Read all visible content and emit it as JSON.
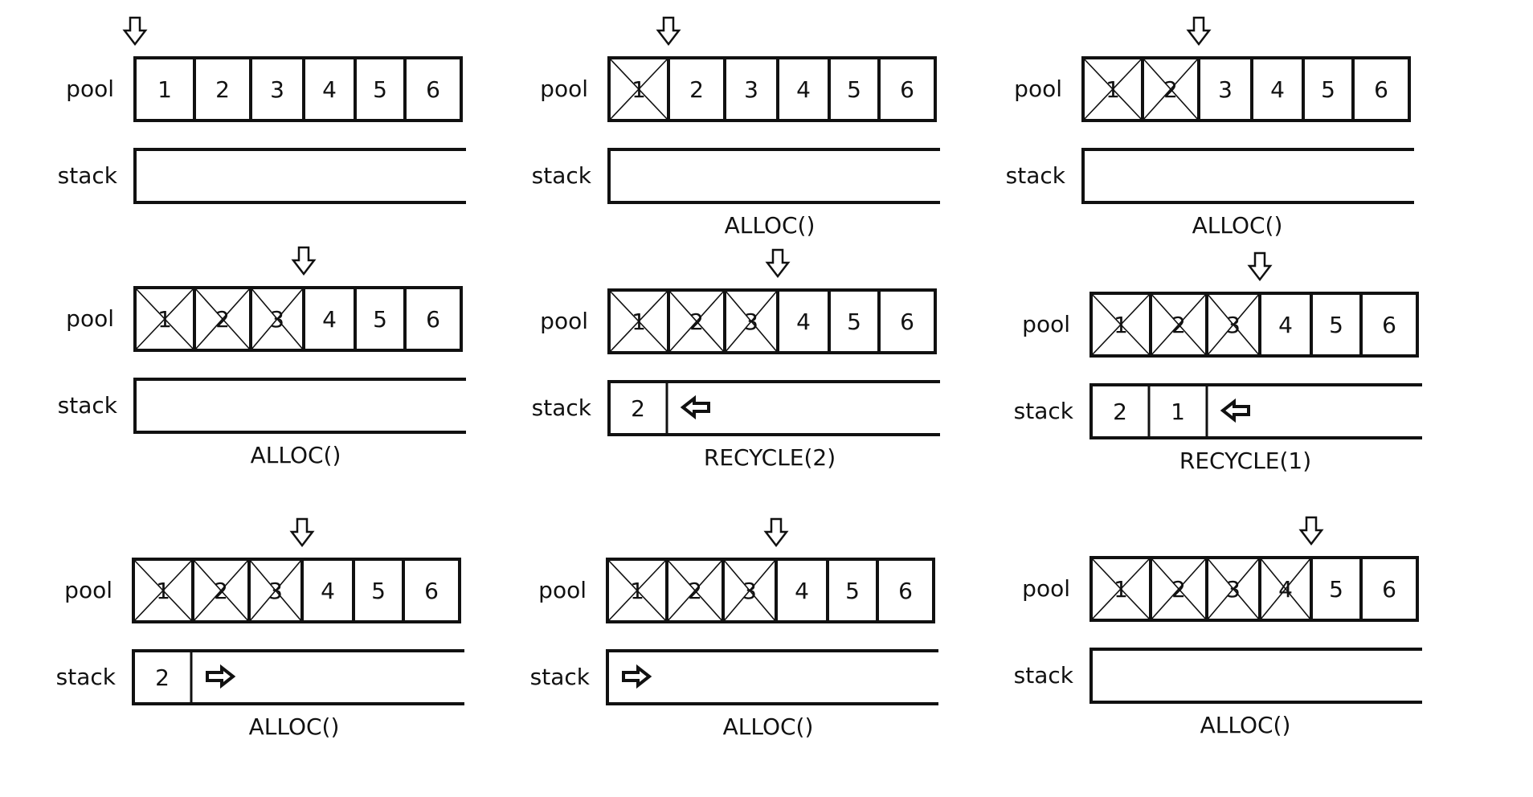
{
  "labels": {
    "pool": "pool",
    "stack": "stack"
  },
  "colors": {
    "line": "#111111",
    "background": "#ffffff"
  },
  "icons": {
    "pointer": "down-arrow-icon",
    "stack_top": "left-arrow-icon",
    "stack_pop": "right-arrow-icon"
  },
  "panels": [
    {
      "pool": [
        "1",
        "2",
        "3",
        "4",
        "5",
        "6"
      ],
      "allocated_count": 0,
      "pool_pointer_index": 0,
      "stack": [],
      "stack_arrow": "none",
      "caption": ""
    },
    {
      "pool": [
        "1",
        "2",
        "3",
        "4",
        "5",
        "6"
      ],
      "allocated_count": 1,
      "pool_pointer_index": 1,
      "stack": [],
      "stack_arrow": "none",
      "caption": "ALLOC()"
    },
    {
      "pool": [
        "1",
        "2",
        "3",
        "4",
        "5",
        "6"
      ],
      "allocated_count": 2,
      "pool_pointer_index": 2,
      "stack": [],
      "stack_arrow": "none",
      "caption": "ALLOC()"
    },
    {
      "pool": [
        "1",
        "2",
        "3",
        "4",
        "5",
        "6"
      ],
      "allocated_count": 3,
      "pool_pointer_index": 3,
      "stack": [],
      "stack_arrow": "none",
      "caption": "ALLOC()"
    },
    {
      "pool": [
        "1",
        "2",
        "3",
        "4",
        "5",
        "6"
      ],
      "allocated_count": 3,
      "pool_pointer_index": 3,
      "stack": [
        "2"
      ],
      "stack_arrow": "left",
      "caption": "RECYCLE(2)"
    },
    {
      "pool": [
        "1",
        "2",
        "3",
        "4",
        "5",
        "6"
      ],
      "allocated_count": 3,
      "pool_pointer_index": 3,
      "stack": [
        "2",
        "1"
      ],
      "stack_arrow": "left",
      "caption": "RECYCLE(1)"
    },
    {
      "pool": [
        "1",
        "2",
        "3",
        "4",
        "5",
        "6"
      ],
      "allocated_count": 3,
      "pool_pointer_index": 3,
      "stack": [
        "2"
      ],
      "stack_arrow": "right",
      "caption": "ALLOC()"
    },
    {
      "pool": [
        "1",
        "2",
        "3",
        "4",
        "5",
        "6"
      ],
      "allocated_count": 3,
      "pool_pointer_index": 3,
      "stack": [],
      "stack_arrow": "right",
      "caption": "ALLOC()"
    },
    {
      "pool": [
        "1",
        "2",
        "3",
        "4",
        "5",
        "6"
      ],
      "allocated_count": 4,
      "pool_pointer_index": 4,
      "stack": [],
      "stack_arrow": "none",
      "caption": "ALLOC()"
    }
  ]
}
